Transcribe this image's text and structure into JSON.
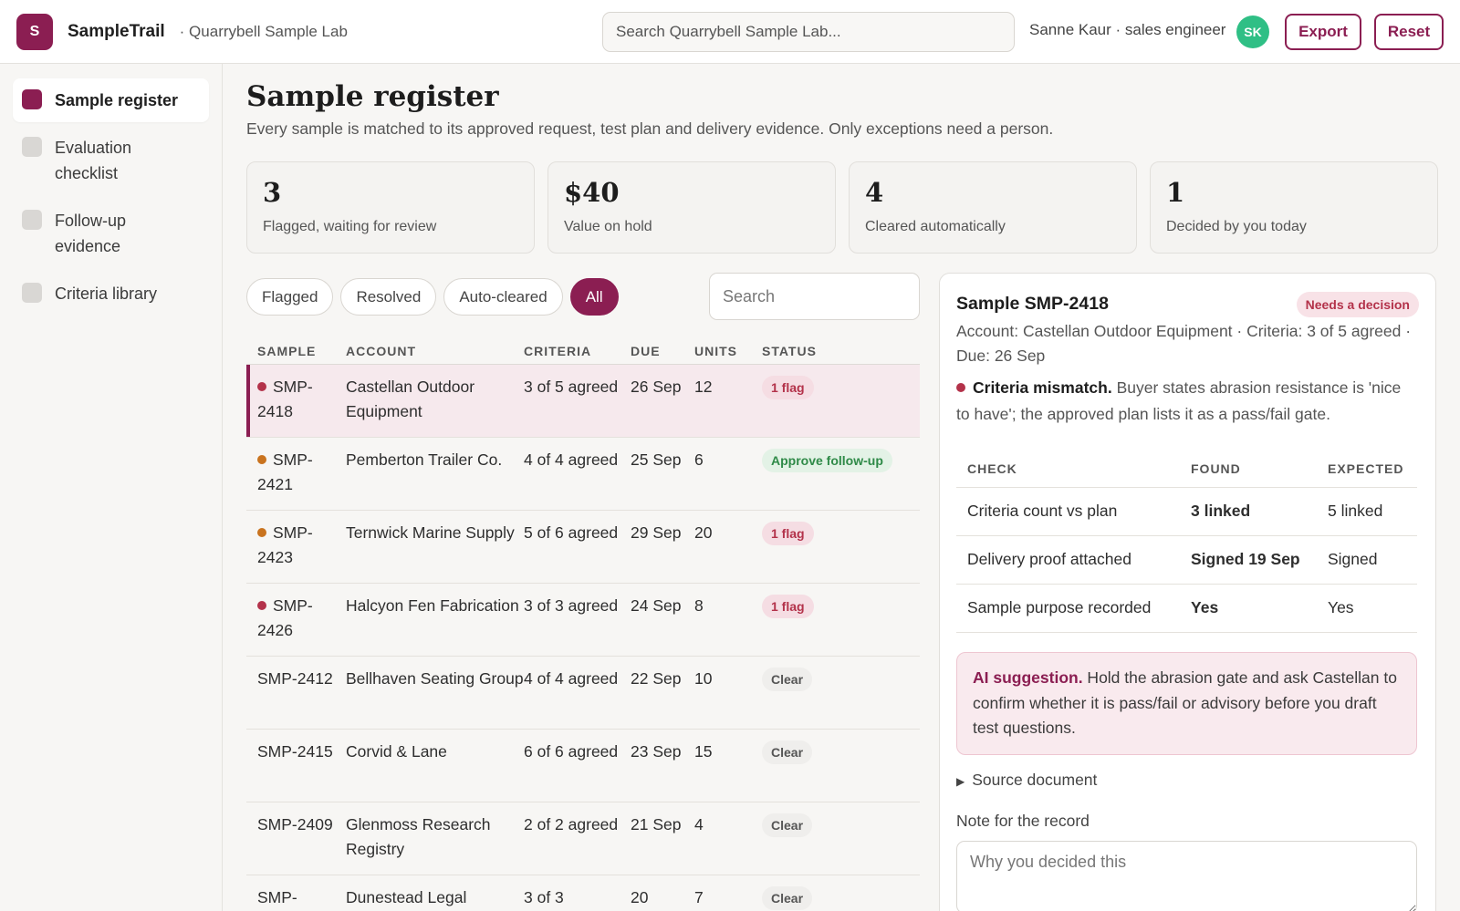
{
  "app": {
    "logo_letter": "S",
    "name": "SampleTrail",
    "workspace": "· Quarrybell Sample Lab",
    "search_placeholder": "Search Quarrybell Sample Lab...",
    "user": "Sanne Kaur · sales engineer",
    "avatar_initials": "SK",
    "export_label": "Export",
    "reset_label": "Reset",
    "accent": "#8b1e52"
  },
  "sidebar": {
    "items": [
      {
        "label": "Sample register",
        "active": true
      },
      {
        "label": "Evaluation checklist",
        "active": false
      },
      {
        "label": "Follow-up evidence",
        "active": false
      },
      {
        "label": "Criteria library",
        "active": false
      }
    ]
  },
  "page": {
    "title": "Sample register",
    "subtitle": "Every sample is matched to its approved request, test plan and delivery evidence. Only exceptions need a person."
  },
  "stats": [
    {
      "value": "3",
      "label": "Flagged, waiting for review"
    },
    {
      "value": "$40",
      "label": "Value on hold"
    },
    {
      "value": "4",
      "label": "Cleared automatically"
    },
    {
      "value": "1",
      "label": "Decided by you today"
    }
  ],
  "filters": {
    "chips": [
      "Flagged",
      "Resolved",
      "Auto-cleared",
      "All"
    ],
    "active": "All",
    "search_placeholder": "Search"
  },
  "table": {
    "headers": [
      "SAMPLE",
      "ACCOUNT",
      "CRITERIA",
      "DUE",
      "UNITS",
      "STATUS"
    ],
    "rows": [
      {
        "sample": "SMP-2418",
        "account": "Castellan Outdoor Equipment",
        "criteria": "3 of 5 agreed",
        "due": "26 Sep",
        "units": "12",
        "status": "1 flag",
        "status_type": "flag",
        "dot": "red",
        "selected": true
      },
      {
        "sample": "SMP-2421",
        "account": "Pemberton Trailer Co.",
        "criteria": "4 of 4 agreed",
        "due": "25 Sep",
        "units": "6",
        "status": "Approve follow-up",
        "status_type": "approve",
        "dot": "orange",
        "selected": false
      },
      {
        "sample": "SMP-2423",
        "account": "Ternwick Marine Supply",
        "criteria": "5 of 6 agreed",
        "due": "29 Sep",
        "units": "20",
        "status": "1 flag",
        "status_type": "flag",
        "dot": "orange",
        "selected": false
      },
      {
        "sample": "SMP-2426",
        "account": "Halcyon Fen Fabrication",
        "criteria": "3 of 3 agreed",
        "due": "24 Sep",
        "units": "8",
        "status": "1 flag",
        "status_type": "flag",
        "dot": "red",
        "selected": false
      },
      {
        "sample": "SMP-2412",
        "account": "Bellhaven Seating Group",
        "criteria": "4 of 4 agreed",
        "due": "22 Sep",
        "units": "10",
        "status": "Clear",
        "status_type": "clear",
        "dot": "",
        "selected": false
      },
      {
        "sample": "SMP-2415",
        "account": "Corvid & Lane",
        "criteria": "6 of 6 agreed",
        "due": "23 Sep",
        "units": "15",
        "status": "Clear",
        "status_type": "clear",
        "dot": "",
        "selected": false
      },
      {
        "sample": "SMP-2409",
        "account": "Glenmoss Research Registry",
        "criteria": "2 of 2 agreed",
        "due": "21 Sep",
        "units": "4",
        "status": "Clear",
        "status_type": "clear",
        "dot": "",
        "selected": false
      },
      {
        "sample": "SMP-",
        "account": "Dunestead Legal",
        "criteria": "3 of 3",
        "due": "20",
        "units": "7",
        "status": "Clear",
        "status_type": "clear",
        "dot": "",
        "selected": false
      }
    ]
  },
  "detail": {
    "title": "Sample SMP-2418",
    "badge": "Needs a decision",
    "meta": "Account: Castellan Outdoor Equipment · Criteria: 3 of 5 agreed · Due: 26 Sep",
    "issue_title": "Criteria mismatch.",
    "issue_text": " Buyer states abrasion resistance is 'nice to have'; the approved plan lists it as a pass/fail gate.",
    "check_headers": [
      "CHECK",
      "FOUND",
      "EXPECTED"
    ],
    "checks": [
      {
        "check": "Criteria count vs plan",
        "found": "3 linked",
        "found_ok": false,
        "expected": "5 linked"
      },
      {
        "check": "Delivery proof attached",
        "found": "Signed 19 Sep",
        "found_ok": true,
        "expected": "Signed"
      },
      {
        "check": "Sample purpose recorded",
        "found": "Yes",
        "found_ok": true,
        "expected": "Yes"
      }
    ],
    "ai_title": "AI suggestion.",
    "ai_text": " Hold the abrasion gate and ask Castellan to confirm whether it is pass/fail or advisory before you draft test questions.",
    "source_label": "Source document",
    "note_label": "Note for the record",
    "note_placeholder": "Why you decided this"
  }
}
